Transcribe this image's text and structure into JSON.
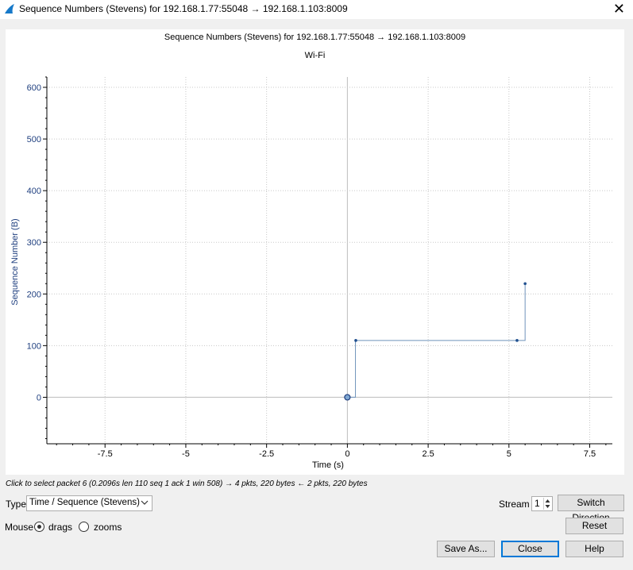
{
  "window": {
    "title": "Sequence Numbers (Stevens) for 192.168.1.77:55048 → 192.168.1.103:8009",
    "close_glyph": "✕"
  },
  "chart_data": {
    "type": "line",
    "title": "Sequence Numbers (Stevens) for 192.168.1.77:55048 → 192.168.1.103:8009",
    "subtitle": "Wi-Fi",
    "xlabel": "Time (s)",
    "ylabel": "Sequence Number (B)",
    "xlim": [
      -9.3,
      8.2
    ],
    "ylim": [
      -90,
      620
    ],
    "xticks": [
      -7.5,
      -5,
      -2.5,
      0,
      2.5,
      5,
      7.5
    ],
    "xtick_labels": [
      "-7.5",
      "-5",
      "-2.5",
      "0",
      "2.5",
      "5",
      "7.5"
    ],
    "yticks": [
      0,
      100,
      200,
      300,
      400,
      500,
      600
    ],
    "ytick_labels": [
      "0",
      "100",
      "200",
      "300",
      "400",
      "500",
      "600"
    ],
    "grid": true,
    "step_line": [
      [
        0,
        0
      ],
      [
        0.25,
        0
      ],
      [
        0.25,
        110
      ],
      [
        5.5,
        110
      ],
      [
        5.5,
        220
      ]
    ],
    "points": [
      {
        "x": 0,
        "y": 0,
        "selected": true
      },
      {
        "x": 0.26,
        "y": 110
      },
      {
        "x": 5.25,
        "y": 110
      },
      {
        "x": 5.5,
        "y": 220
      }
    ],
    "colors": {
      "axis_text": "#1f3f7f",
      "line": "#6f93bb",
      "point": "#1f4f8f",
      "grid": "#c8c8c8"
    }
  },
  "hint": "Click to select packet 6 (0.2096s len 110 seq 1 ack 1 win 508) → 4 pkts, 220 bytes ← 2 pkts, 220 bytes",
  "controls": {
    "type_label": "Type",
    "type_value": "Time / Sequence (Stevens)",
    "stream_label": "Stream",
    "stream_value": "1",
    "switch_direction": "Switch Direction",
    "mouse_label": "Mouse",
    "mouse_drags": "drags",
    "mouse_zooms": "zooms",
    "reset": "Reset",
    "save_as": "Save As...",
    "close": "Close",
    "help": "Help"
  }
}
